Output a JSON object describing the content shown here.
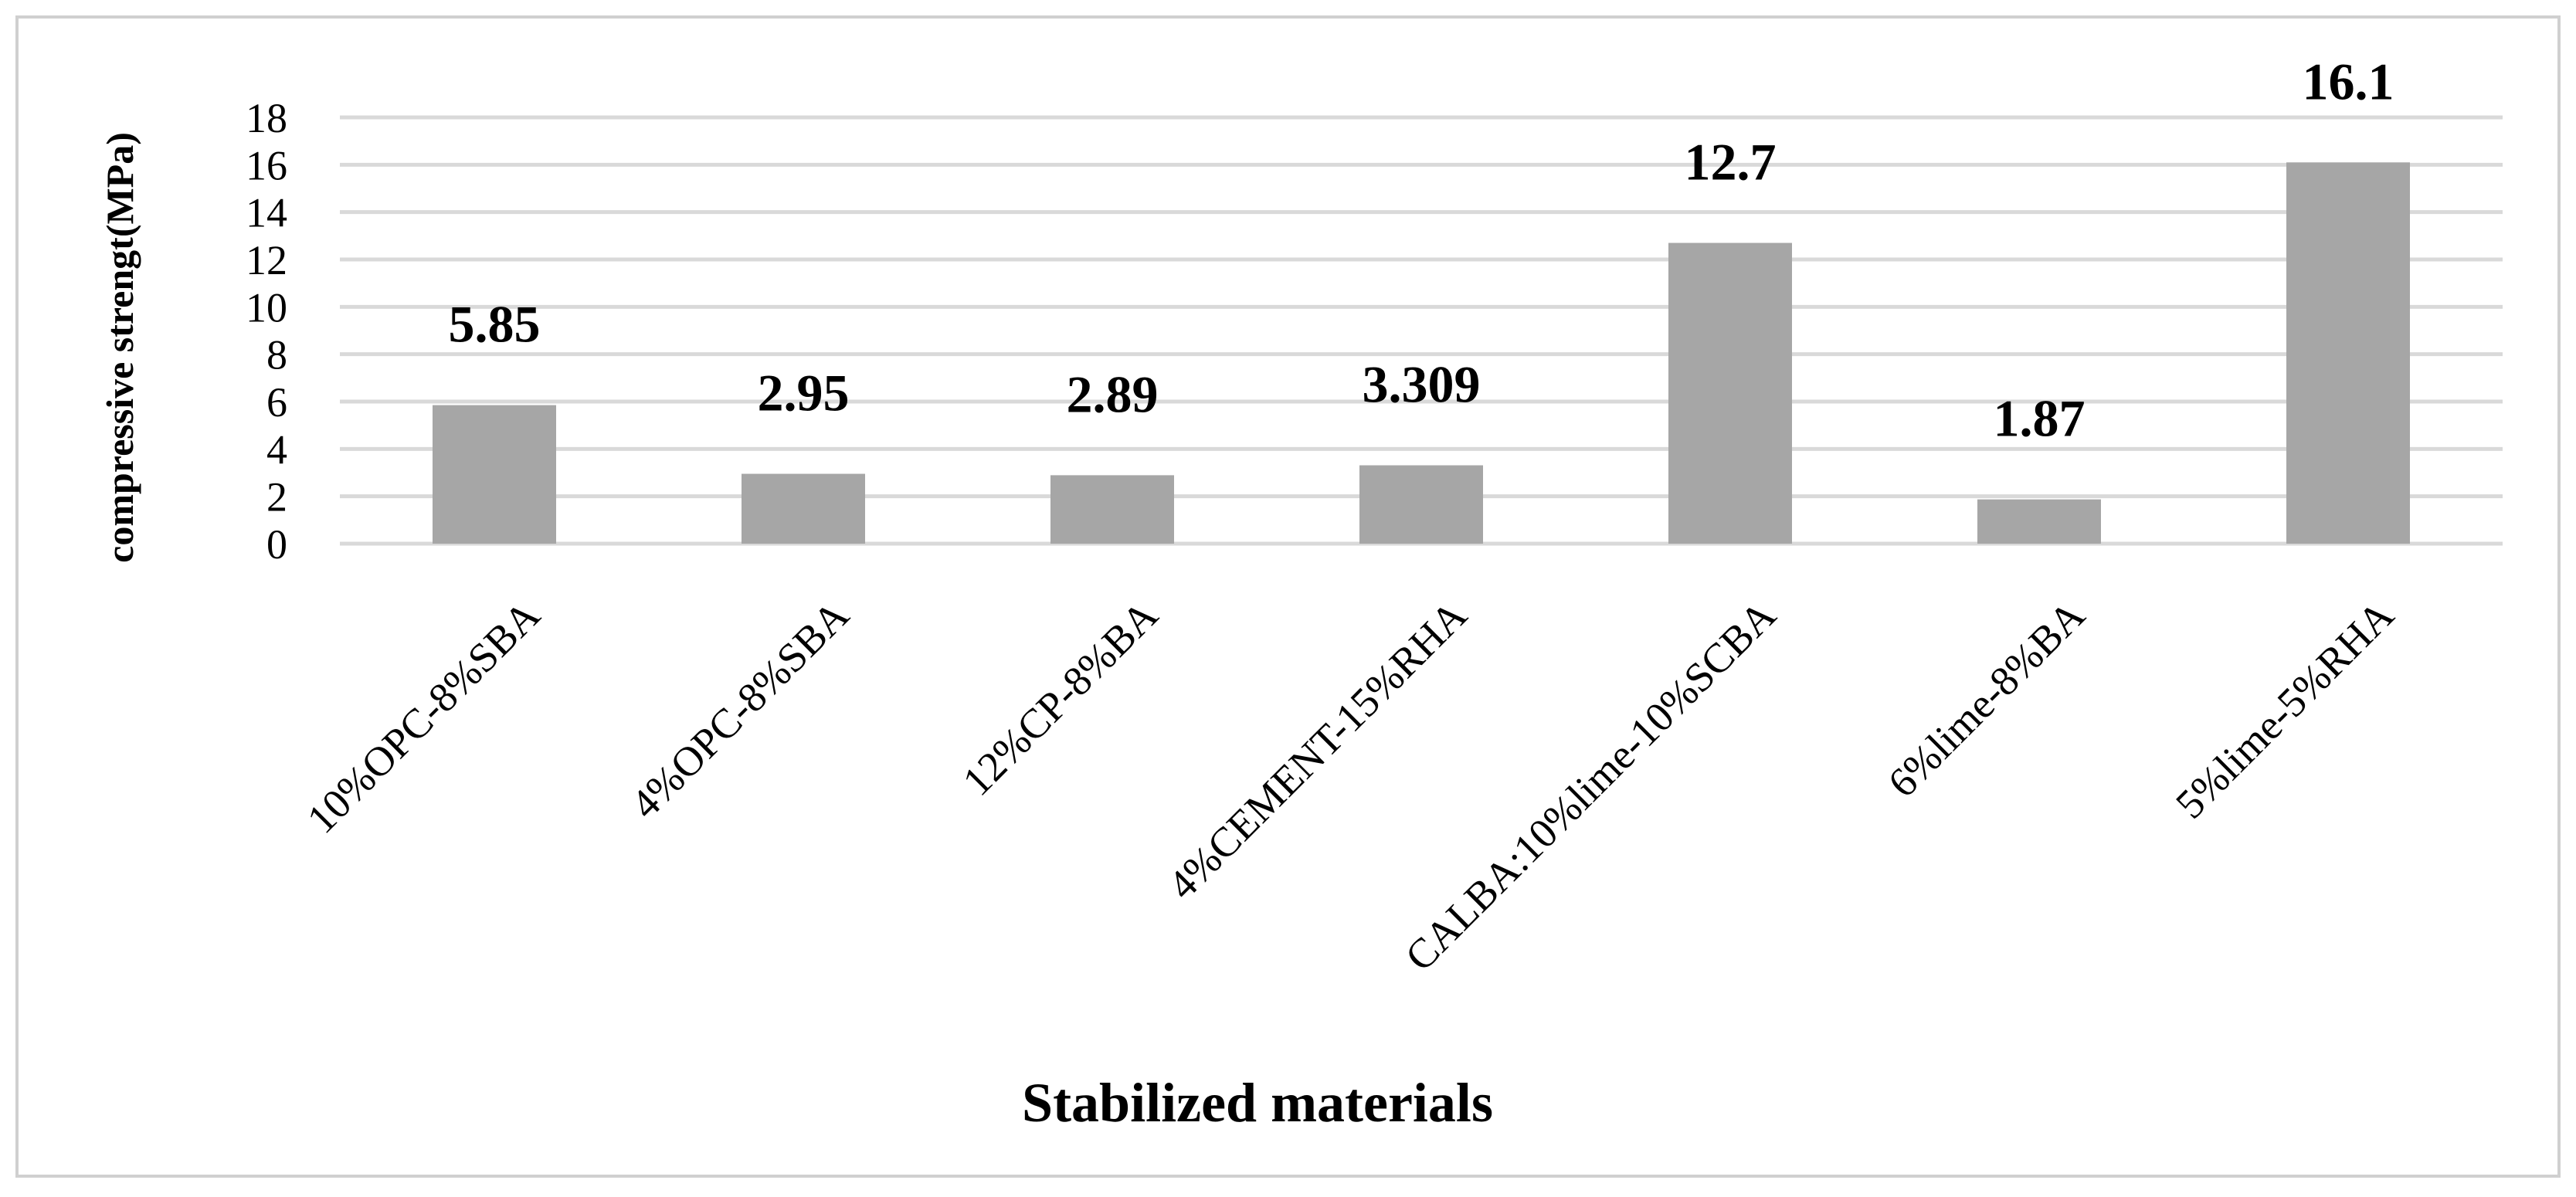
{
  "chart_data": {
    "type": "bar",
    "categories": [
      "10%OPC-8%SBA",
      "4%OPC-8%SBA",
      "12%CP-8%BA",
      "4%CEMENT-15%RHA",
      "CALBA:10%lime-10%SCBA",
      "6%lime-8%BA",
      "5%lime-5%RHA"
    ],
    "values": [
      5.85,
      2.95,
      2.89,
      3.309,
      12.7,
      1.87,
      16.1
    ],
    "data_labels": [
      "5.85",
      "2.95",
      "2.89",
      "3.309",
      "12.7",
      "1.87",
      "16.1"
    ],
    "xlabel": "Stabilized materials",
    "ylabel": "compressive strengt(MPa)",
    "ylim": [
      0,
      18
    ],
    "yticks": [
      0,
      2,
      4,
      6,
      8,
      10,
      12,
      14,
      16,
      18
    ],
    "grid": true,
    "legend": "none",
    "colors": {
      "bar": "#a6a6a6",
      "grid": "#d9d9d9",
      "frame": "#d0d0d0"
    }
  }
}
